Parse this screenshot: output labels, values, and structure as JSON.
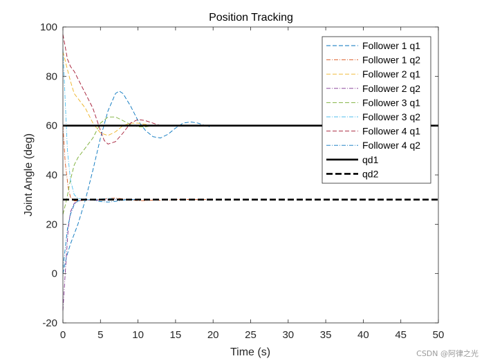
{
  "chart_data": {
    "type": "line",
    "title": "Position Tracking",
    "xlabel": "Time (s)",
    "ylabel": "Joint Angle (deg)",
    "xlim": [
      0,
      50
    ],
    "ylim": [
      -20,
      100
    ],
    "xticks": [
      0,
      5,
      10,
      15,
      20,
      25,
      30,
      35,
      40,
      45,
      50
    ],
    "yticks": [
      -20,
      0,
      20,
      40,
      60,
      80,
      100
    ],
    "grid": false,
    "legend_position": "top-right",
    "series": [
      {
        "name": "Follower 1 q1",
        "color": "#0072BD",
        "dash": "dashed",
        "x": [
          0,
          0.5,
          1,
          1.5,
          2,
          3,
          4,
          5,
          6,
          7,
          7.5,
          8,
          9,
          10,
          11,
          12,
          13,
          14,
          15,
          16,
          17,
          18,
          19,
          19.5
        ],
        "y": [
          0,
          7,
          12,
          16,
          20,
          30,
          42,
          55,
          66,
          73,
          74,
          73,
          68,
          62,
          58,
          55.5,
          55,
          56.5,
          59,
          61,
          61.5,
          61,
          60,
          59.5
        ]
      },
      {
        "name": "Follower 1 q2",
        "color": "#D95319",
        "dash": "dashdot",
        "x": [
          0,
          0.3,
          0.7,
          1,
          1.5,
          2,
          3,
          4,
          5,
          6,
          7,
          8,
          9,
          10,
          11,
          12,
          13,
          14,
          15,
          16,
          17,
          18,
          19,
          20
        ],
        "y": [
          60,
          45,
          35,
          31,
          29.5,
          29.5,
          29.8,
          29.8,
          30,
          30.5,
          30.6,
          30.3,
          29.8,
          29.6,
          29.6,
          29.8,
          29.7,
          29.8,
          30,
          30.1,
          30,
          30,
          30,
          30
        ]
      },
      {
        "name": "Follower 2 q1",
        "color": "#EDB120",
        "dash": "dashed",
        "x": [
          0,
          0.5,
          1,
          1.5,
          2,
          2.5,
          3,
          4,
          5,
          6,
          7,
          8,
          9,
          10,
          11,
          12,
          13
        ],
        "y": [
          90,
          84,
          78,
          73,
          71,
          69,
          67,
          61,
          57,
          56,
          57.5,
          60,
          61,
          61,
          60.5,
          60,
          60
        ]
      },
      {
        "name": "Follower 2 q2",
        "color": "#7E2F8E",
        "dash": "dashdot",
        "x": [
          0,
          0.3,
          0.7,
          1,
          1.5,
          2,
          3,
          4,
          5,
          6,
          7,
          8,
          9,
          10
        ],
        "y": [
          -15,
          0,
          18,
          25,
          28.5,
          29.5,
          30,
          29.8,
          29.8,
          29.9,
          30,
          30,
          30,
          30
        ]
      },
      {
        "name": "Follower 3 q1",
        "color": "#77AC30",
        "dash": "dashed",
        "x": [
          0,
          0.5,
          1,
          1.5,
          2,
          3,
          4,
          5,
          6,
          7,
          8,
          9,
          10,
          11,
          12
        ],
        "y": [
          24,
          30,
          38,
          44,
          47,
          51,
          55,
          61,
          63.5,
          63.5,
          62,
          60.5,
          59.5,
          59.5,
          60
        ]
      },
      {
        "name": "Follower 3 q2",
        "color": "#4DBEEE",
        "dash": "dashdot",
        "x": [
          0,
          0.3,
          0.6,
          1,
          1.5,
          2,
          3,
          4,
          5,
          6,
          7,
          8,
          9,
          10
        ],
        "y": [
          91,
          70,
          50,
          38,
          32,
          30.5,
          30,
          30,
          30.2,
          30.5,
          30.3,
          30,
          29.9,
          30
        ]
      },
      {
        "name": "Follower 4 q1",
        "color": "#A2142F",
        "dash": "dashed",
        "x": [
          0,
          0.3,
          0.6,
          1,
          1.5,
          2,
          3,
          4,
          5,
          5.5,
          6,
          7,
          8,
          9,
          10,
          11,
          12,
          13,
          14
        ],
        "y": [
          97,
          92,
          87,
          84,
          82,
          79,
          73,
          67,
          58,
          54,
          52.5,
          53.5,
          57,
          61,
          62.5,
          62,
          61,
          60,
          60
        ]
      },
      {
        "name": "Follower 4 q2",
        "color": "#0072BD",
        "dash": "dashdot",
        "x": [
          0,
          0.3,
          0.6,
          1,
          1.5,
          2,
          3,
          4,
          5,
          6,
          7,
          8,
          9,
          10
        ],
        "y": [
          2,
          10,
          18,
          24,
          28,
          29.5,
          30,
          29.8,
          29.2,
          29,
          29.3,
          29.8,
          30,
          30
        ]
      },
      {
        "name": "qd1",
        "color": "#000000",
        "dash": "solid",
        "x": [
          0,
          50
        ],
        "y": [
          60,
          60
        ]
      },
      {
        "name": "qd2",
        "color": "#000000",
        "dash": "bolddash",
        "x": [
          0,
          50
        ],
        "y": [
          30,
          30
        ]
      }
    ]
  },
  "watermark": "CSDN @阿律之光"
}
